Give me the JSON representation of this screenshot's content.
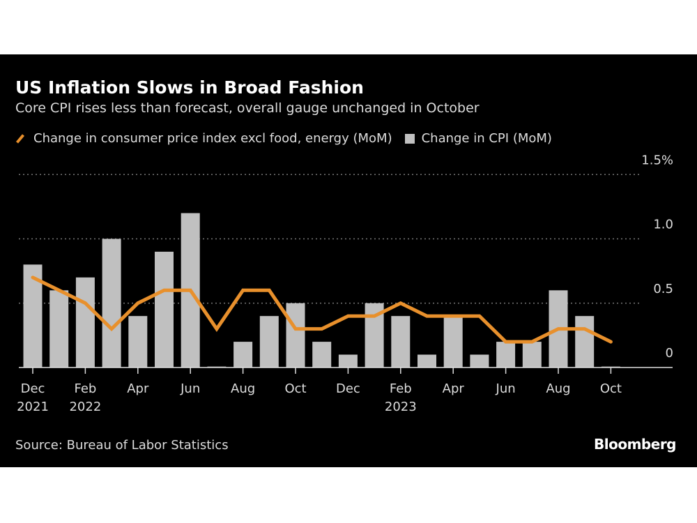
{
  "chart_data": {
    "type": "bar+line",
    "title": "US Inflation Slows in Broad Fashion",
    "subtitle": "Core CPI rises less than forecast, overall gauge unchanged in October",
    "source": "Source: Bureau of Labor Statistics",
    "logo": "Bloomberg",
    "months": [
      "Dec 2021",
      "Jan 2022",
      "Feb 2022",
      "Mar 2022",
      "Apr 2022",
      "May 2022",
      "Jun 2022",
      "Jul 2022",
      "Aug 2022",
      "Sep 2022",
      "Oct 2022",
      "Nov 2022",
      "Dec 2022",
      "Jan 2023",
      "Feb 2023",
      "Mar 2023",
      "Apr 2023",
      "May 2023",
      "Jun 2023",
      "Jul 2023",
      "Aug 2023",
      "Sep 2023",
      "Oct 2023"
    ],
    "x_tick_labels": [
      {
        "index": 0,
        "line1": "Dec",
        "line2": "2021"
      },
      {
        "index": 2,
        "line1": "Feb",
        "line2": "2022"
      },
      {
        "index": 4,
        "line1": "Apr",
        "line2": ""
      },
      {
        "index": 6,
        "line1": "Jun",
        "line2": ""
      },
      {
        "index": 8,
        "line1": "Aug",
        "line2": ""
      },
      {
        "index": 10,
        "line1": "Oct",
        "line2": ""
      },
      {
        "index": 12,
        "line1": "Dec",
        "line2": ""
      },
      {
        "index": 14,
        "line1": "Feb",
        "line2": "2023"
      },
      {
        "index": 16,
        "line1": "Apr",
        "line2": ""
      },
      {
        "index": 18,
        "line1": "Jun",
        "line2": ""
      },
      {
        "index": 20,
        "line1": "Aug",
        "line2": ""
      },
      {
        "index": 22,
        "line1": "Oct",
        "line2": ""
      }
    ],
    "y_ticks": [
      {
        "value": 0,
        "label": "0"
      },
      {
        "value": 0.5,
        "label": "0.5"
      },
      {
        "value": 1.0,
        "label": "1.0"
      },
      {
        "value": 1.5,
        "label": "1.5%"
      }
    ],
    "ylim": [
      0,
      1.5
    ],
    "grid": true,
    "legend_position": "top",
    "series": [
      {
        "name": "Change in consumer price index excl food, energy (MoM)",
        "type": "line",
        "color": "#e8902c",
        "values": [
          0.7,
          0.6,
          0.5,
          0.3,
          0.5,
          0.6,
          0.6,
          0.3,
          0.6,
          0.6,
          0.3,
          0.3,
          0.4,
          0.4,
          0.5,
          0.4,
          0.4,
          0.4,
          0.2,
          0.2,
          0.3,
          0.3,
          0.2
        ]
      },
      {
        "name": "Change in CPI (MoM)",
        "type": "bar",
        "color": "#c0c0c0",
        "values": [
          0.8,
          0.6,
          0.7,
          1.0,
          0.4,
          0.9,
          1.2,
          0.0,
          0.2,
          0.4,
          0.5,
          0.2,
          0.1,
          0.5,
          0.4,
          0.1,
          0.4,
          0.1,
          0.2,
          0.2,
          0.6,
          0.4,
          0.0
        ]
      }
    ]
  }
}
